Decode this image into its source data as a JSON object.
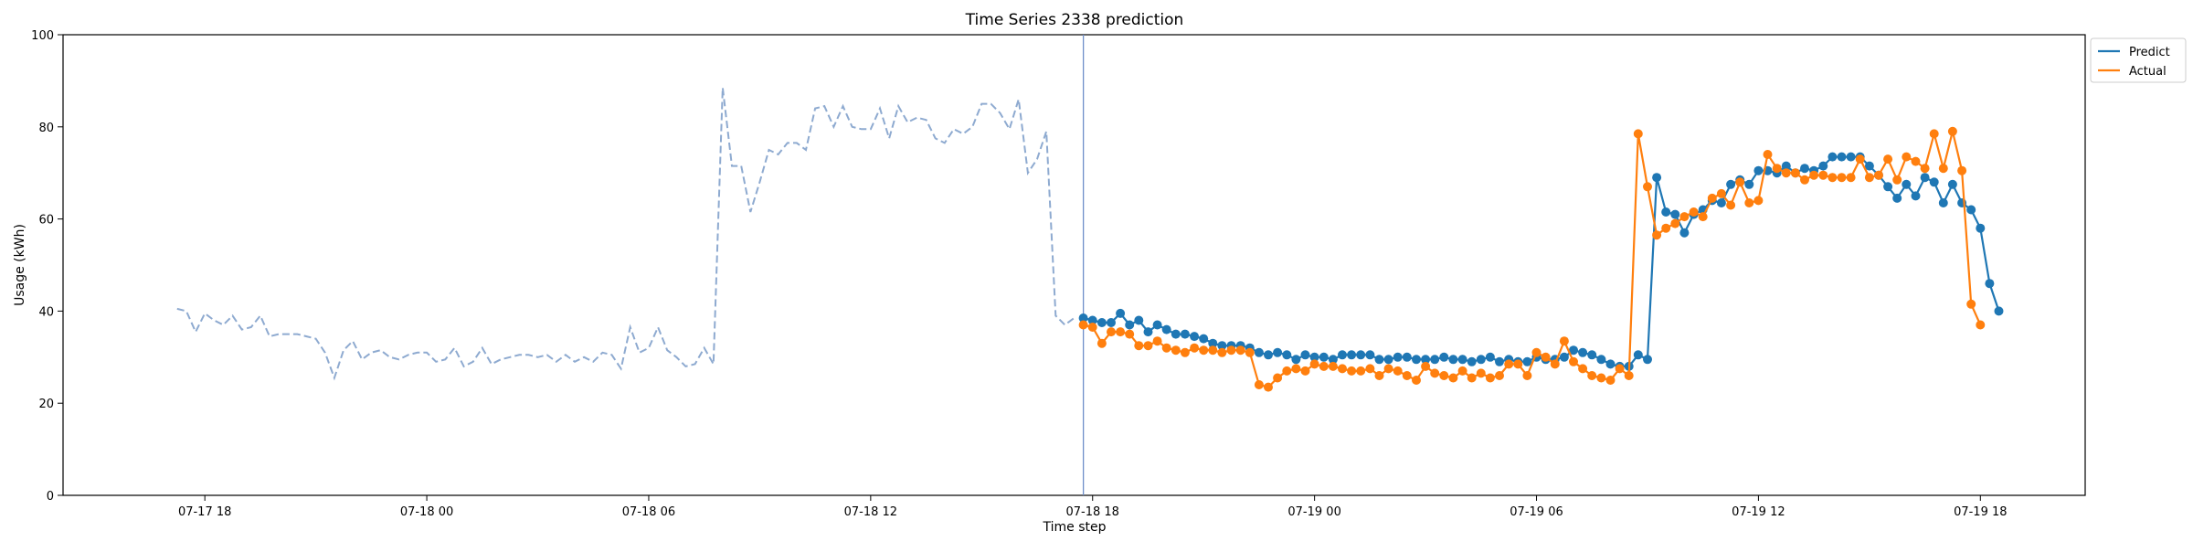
{
  "chart_data": {
    "type": "line",
    "title": "Time Series 2338 prediction",
    "xlabel": "Time step",
    "ylabel": "Usage (kWh)",
    "ylim": [
      0,
      100
    ],
    "yticks": [
      0,
      20,
      40,
      60,
      80,
      100
    ],
    "xlim": [
      "2024-07-17T14:10",
      "2024-07-19T20:50"
    ],
    "xticks": [
      {
        "t": "2024-07-17T18:00",
        "label": "07-17 18"
      },
      {
        "t": "2024-07-18T00:00",
        "label": "07-18 00"
      },
      {
        "t": "2024-07-18T06:00",
        "label": "07-18 06"
      },
      {
        "t": "2024-07-18T12:00",
        "label": "07-18 12"
      },
      {
        "t": "2024-07-18T18:00",
        "label": "07-18 18"
      },
      {
        "t": "2024-07-19T00:00",
        "label": "07-19 00"
      },
      {
        "t": "2024-07-19T06:00",
        "label": "07-19 06"
      },
      {
        "t": "2024-07-19T12:00",
        "label": "07-19 12"
      },
      {
        "t": "2024-07-19T18:00",
        "label": "07-19 18"
      }
    ],
    "grid": false,
    "legend": {
      "position": "upper-right-outside",
      "entries": [
        "Predict",
        "Actual"
      ]
    },
    "forecast_start": "2024-07-18T17:45",
    "history": {
      "style": "dashed",
      "color": "#8eaad0",
      "x_start": "2024-07-17T17:15",
      "interval_minutes": 15,
      "values": [
        40.5,
        40.0,
        35.5,
        39.5,
        38.0,
        37.0,
        39.0,
        36.0,
        36.5,
        39.0,
        34.5,
        35.0,
        35.0,
        35.0,
        34.5,
        34.0,
        31.0,
        25.5,
        31.5,
        33.5,
        29.5,
        31.0,
        31.5,
        30.0,
        29.5,
        30.5,
        31.0,
        31.0,
        29.0,
        29.5,
        32.0,
        28.0,
        29.0,
        32.0,
        28.5,
        29.5,
        30.0,
        30.5,
        30.5,
        30.0,
        30.5,
        29.0,
        30.5,
        29.0,
        30.0,
        29.0,
        31.0,
        30.5,
        27.5,
        36.5,
        31.0,
        32.0,
        36.5,
        31.5,
        30.0,
        28.0,
        28.5,
        32.0,
        28.5,
        88.5,
        71.5,
        71.5,
        61.5,
        68.0,
        75.0,
        74.0,
        76.5,
        76.5,
        75.0,
        84.0,
        84.5,
        80.0,
        84.5,
        80.0,
        79.5,
        79.5,
        84.0,
        77.5,
        84.5,
        81.0,
        82.0,
        81.5,
        77.5,
        76.5,
        79.5,
        78.5,
        80.0,
        85.0,
        85.0,
        83.0,
        79.5,
        86.0,
        70.0,
        73.0,
        79.0,
        39.0,
        37.0,
        38.5
      ]
    },
    "x_start": "2024-07-18T17:45",
    "interval_minutes": 15,
    "series": [
      {
        "name": "Predict",
        "color": "#1f77b4",
        "values": [
          38.5,
          38.0,
          37.5,
          37.5,
          39.5,
          37.0,
          38.0,
          35.5,
          37.0,
          36.0,
          35.0,
          35.0,
          34.5,
          34.0,
          33.0,
          32.5,
          32.5,
          32.5,
          32.0,
          31.0,
          30.5,
          31.0,
          30.5,
          29.5,
          30.5,
          30.0,
          30.0,
          29.5,
          30.5,
          30.5,
          30.5,
          30.5,
          29.5,
          29.5,
          30.0,
          30.0,
          29.5,
          29.5,
          29.5,
          30.0,
          29.5,
          29.5,
          29.0,
          29.5,
          30.0,
          29.0,
          29.5,
          29.0,
          29.0,
          30.0,
          29.5,
          29.5,
          30.0,
          31.5,
          31.0,
          30.5,
          29.5,
          28.5,
          28.0,
          28.0,
          30.5,
          29.5,
          69.0,
          61.5,
          61.0,
          57.0,
          61.0,
          62.0,
          64.0,
          63.5,
          67.5,
          68.5,
          67.5,
          70.5,
          70.5,
          70.0,
          71.5,
          70.0,
          71.0,
          70.5,
          71.5,
          73.5,
          73.5,
          73.5,
          73.5,
          71.5,
          69.5,
          67.0,
          64.5,
          67.5,
          65.0,
          69.0,
          68.0,
          63.5,
          67.5,
          63.5,
          62.0,
          58.0,
          46.0,
          40.0
        ]
      },
      {
        "name": "Actual",
        "color": "#ff7f0e",
        "values": [
          37.0,
          36.5,
          33.0,
          35.5,
          35.5,
          35.0,
          32.5,
          32.5,
          33.5,
          32.0,
          31.5,
          31.0,
          32.0,
          31.5,
          31.5,
          31.0,
          31.5,
          31.5,
          31.0,
          24.0,
          23.5,
          25.5,
          27.0,
          27.5,
          27.0,
          28.5,
          28.0,
          28.0,
          27.5,
          27.0,
          27.0,
          27.5,
          26.0,
          27.5,
          27.0,
          26.0,
          25.0,
          28.0,
          26.5,
          26.0,
          25.5,
          27.0,
          25.5,
          26.5,
          25.5,
          26.0,
          28.5,
          28.5,
          26.0,
          31.0,
          30.0,
          28.5,
          33.5,
          29.0,
          27.5,
          26.0,
          25.5,
          25.0,
          27.5,
          26.0,
          78.5,
          67.0,
          56.5,
          58.0,
          59.0,
          60.5,
          61.5,
          60.5,
          64.5,
          65.5,
          63.0,
          68.0,
          63.5,
          64.0,
          74.0,
          71.0,
          70.0,
          70.0,
          68.5,
          69.5,
          69.5,
          69.0,
          69.0,
          69.0,
          73.0,
          69.0,
          69.5,
          73.0,
          68.5,
          73.5,
          72.5,
          71.0,
          78.5,
          71.0,
          79.0,
          70.5,
          41.5,
          37.0
        ]
      }
    ]
  }
}
